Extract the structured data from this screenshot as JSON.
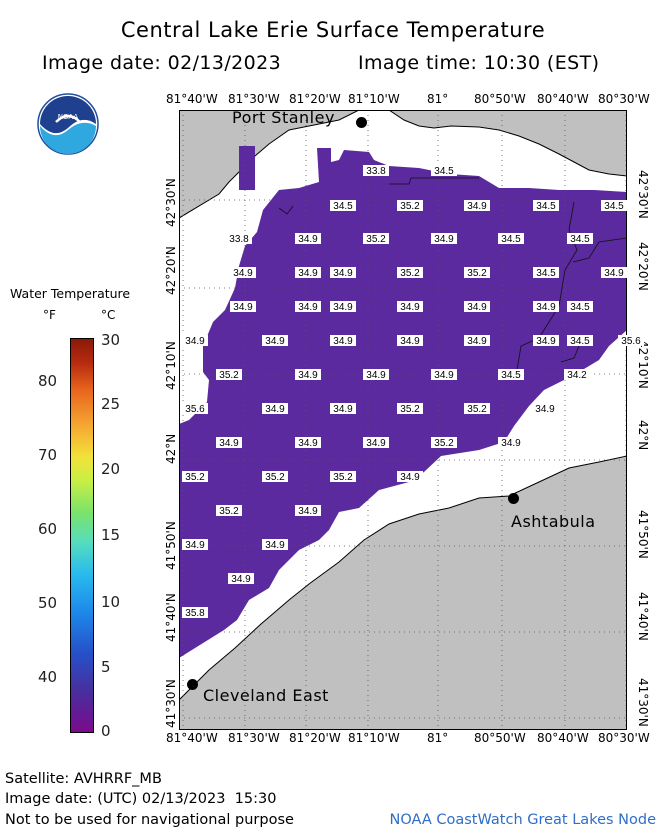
{
  "header": {
    "title": "Central Lake Erie Surface Temperature",
    "image_date": "Image date: 02/13/2023",
    "image_time": "Image time: 10:30 (EST)"
  },
  "logo": {
    "icon": "noaa-logo",
    "text": "NOAA"
  },
  "legend": {
    "title": "Water Temperature",
    "unit_f": "°F",
    "unit_c": "°C",
    "fahrenheit_ticks": [
      "80",
      "70",
      "60",
      "50",
      "40"
    ],
    "celsius_ticks": [
      "30",
      "25",
      "20",
      "15",
      "10",
      "5",
      "0"
    ],
    "scale_min_c": 0,
    "scale_max_c": 30
  },
  "map": {
    "lon_labels": [
      "81°40'W",
      "81°30'W",
      "81°20'W",
      "81°10'W",
      "81°",
      "80°50'W",
      "80°40'W",
      "80°30'W"
    ],
    "lat_labels": [
      "42°30'N",
      "42°20'N",
      "42°10'N",
      "42°N",
      "41°50'N",
      "41°40'N",
      "41°30'N"
    ],
    "cities": [
      {
        "name": "Port Stanley"
      },
      {
        "name": "Ashtabula"
      },
      {
        "name": "Cleveland East"
      }
    ],
    "temperature_labels_c": [
      "33.8",
      "34.5",
      "34.5",
      "35.2",
      "34.9",
      "34.5",
      "34.5",
      "33.8",
      "34.9",
      "35.2",
      "34.9",
      "34.5",
      "34.5",
      "34.9",
      "34.9",
      "34.9",
      "35.2",
      "35.2",
      "34.5",
      "34.9",
      "34.9",
      "34.9",
      "34.9",
      "34.9",
      "34.9",
      "34.9",
      "34.5",
      "34.9",
      "34.9",
      "34.9",
      "34.9",
      "34.9",
      "34.9",
      "34.5",
      "35.6",
      "35.2",
      "34.9",
      "34.9",
      "34.9",
      "34.5",
      "34.2",
      "35.6",
      "34.9",
      "34.9",
      "35.2",
      "35.2",
      "34.9",
      "34.9",
      "34.9",
      "34.9",
      "35.2",
      "34.9",
      "35.2",
      "35.2",
      "35.2",
      "34.9",
      "35.2",
      "34.9",
      "34.9",
      "34.9",
      "34.9",
      "35.8"
    ],
    "colors": {
      "land": "#c0c0c0",
      "ice": "#ffffff",
      "water": "#5a2a9e"
    }
  },
  "footer": {
    "satellite": "Satellite: AVHRRF_MB",
    "utc_date": "Image date: (UTC) 02/13/2023  15:30",
    "disclaimer": "Not to be used for navigational purpose",
    "credit": "NOAA CoastWatch Great Lakes Node"
  }
}
